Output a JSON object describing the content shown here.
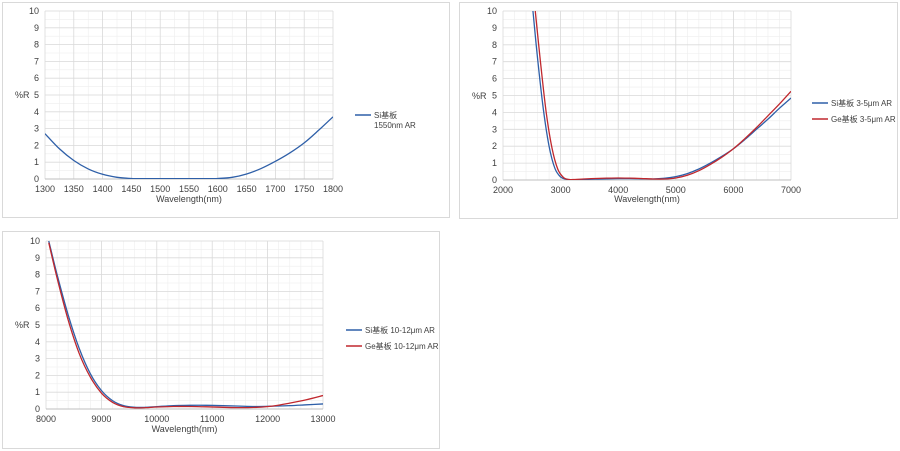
{
  "chart_data": [
    {
      "type": "line",
      "ylabel": "%R",
      "xlabel": "Wavelength(nm)",
      "xlim": [
        1300,
        1800
      ],
      "ylim": [
        0,
        10
      ],
      "xticks": [
        "1300",
        "1350",
        "1400",
        "1450",
        "1500",
        "1550",
        "1600",
        "1650",
        "1700",
        "1750",
        "1800"
      ],
      "yticks": [
        "0",
        "1",
        "2",
        "3",
        "4",
        "5",
        "6",
        "7",
        "8",
        "9",
        "10"
      ],
      "grid": true,
      "legend": "right",
      "series": [
        {
          "name": "Si基板",
          "name_line2": "1550nm AR",
          "color": "#2e5fa8",
          "x": [
            1300,
            1325,
            1350,
            1375,
            1400,
            1425,
            1450,
            1475,
            1500,
            1525,
            1550,
            1575,
            1600,
            1625,
            1650,
            1675,
            1700,
            1725,
            1750,
            1775,
            1800
          ],
          "y": [
            2.7,
            1.8,
            1.1,
            0.6,
            0.28,
            0.1,
            0.03,
            0.02,
            0.02,
            0.02,
            0.02,
            0.02,
            0.03,
            0.1,
            0.3,
            0.62,
            1.05,
            1.55,
            2.15,
            2.9,
            3.7
          ]
        }
      ]
    },
    {
      "type": "line",
      "ylabel": "%R",
      "xlabel": "Wavelength(nm)",
      "xlim": [
        2000,
        7000
      ],
      "ylim": [
        0,
        10
      ],
      "xticks": [
        "2000",
        "3000",
        "4000",
        "5000",
        "6000",
        "7000"
      ],
      "yticks": [
        "0",
        "1",
        "2",
        "3",
        "4",
        "5",
        "6",
        "7",
        "8",
        "9",
        "10"
      ],
      "grid": true,
      "legend": "right",
      "series": [
        {
          "name": "Si基板 3-5μm AR",
          "color": "#2e5fa8",
          "x": [
            2520,
            2600,
            2700,
            2800,
            2900,
            3000,
            3100,
            3200,
            3400,
            3600,
            3800,
            4000,
            4200,
            4400,
            4600,
            4800,
            5000,
            5200,
            5400,
            5600,
            5800,
            6000,
            6200,
            6400,
            6600,
            6800,
            7000
          ],
          "y": [
            10,
            7.2,
            4.2,
            2.0,
            0.7,
            0.18,
            0.04,
            0.02,
            0.03,
            0.05,
            0.07,
            0.08,
            0.08,
            0.07,
            0.06,
            0.1,
            0.2,
            0.38,
            0.65,
            1.0,
            1.4,
            1.85,
            2.4,
            3.0,
            3.6,
            4.25,
            4.85
          ]
        },
        {
          "name": "Ge基板 3-5μm AR",
          "color": "#c0272d",
          "x": [
            2560,
            2650,
            2750,
            2850,
            2950,
            3050,
            3150,
            3250,
            3400,
            3600,
            3800,
            4000,
            4200,
            4400,
            4600,
            4800,
            5000,
            5200,
            5400,
            5600,
            5800,
            6000,
            6200,
            6400,
            6600,
            6800,
            7000
          ],
          "y": [
            10,
            7.0,
            4.0,
            1.9,
            0.65,
            0.15,
            0.03,
            0.03,
            0.06,
            0.09,
            0.11,
            0.12,
            0.11,
            0.09,
            0.06,
            0.06,
            0.12,
            0.28,
            0.55,
            0.92,
            1.35,
            1.85,
            2.45,
            3.1,
            3.8,
            4.5,
            5.25
          ]
        }
      ]
    },
    {
      "type": "line",
      "ylabel": "%R",
      "xlabel": "Wavelength(nm)",
      "xlim": [
        8000,
        13000
      ],
      "ylim": [
        0,
        10
      ],
      "xticks": [
        "8000",
        "9000",
        "10000",
        "11000",
        "12000",
        "13000"
      ],
      "yticks": [
        "0",
        "1",
        "2",
        "3",
        "4",
        "5",
        "6",
        "7",
        "8",
        "9",
        "10"
      ],
      "grid": true,
      "legend": "right",
      "series": [
        {
          "name": "Si基板 10-12μm AR",
          "color": "#2e5fa8",
          "x": [
            8050,
            8200,
            8400,
            8600,
            8800,
            9000,
            9200,
            9400,
            9600,
            9800,
            10000,
            10300,
            10600,
            10900,
            11200,
            11500,
            11800,
            12100,
            12400,
            12700,
            13000
          ],
          "y": [
            10,
            8.0,
            5.6,
            3.6,
            2.1,
            1.1,
            0.5,
            0.2,
            0.1,
            0.1,
            0.14,
            0.2,
            0.22,
            0.22,
            0.2,
            0.17,
            0.15,
            0.17,
            0.2,
            0.25,
            0.3
          ]
        },
        {
          "name": "Ge基板 10-12μm AR",
          "color": "#c0272d",
          "x": [
            8050,
            8200,
            8400,
            8600,
            8800,
            9000,
            9200,
            9400,
            9600,
            9800,
            10000,
            10300,
            10600,
            10900,
            11200,
            11500,
            11800,
            12100,
            12400,
            12700,
            13000
          ],
          "y": [
            9.9,
            7.8,
            5.3,
            3.3,
            1.9,
            0.95,
            0.4,
            0.14,
            0.07,
            0.08,
            0.12,
            0.15,
            0.15,
            0.13,
            0.1,
            0.08,
            0.1,
            0.18,
            0.35,
            0.55,
            0.8
          ]
        }
      ]
    }
  ]
}
